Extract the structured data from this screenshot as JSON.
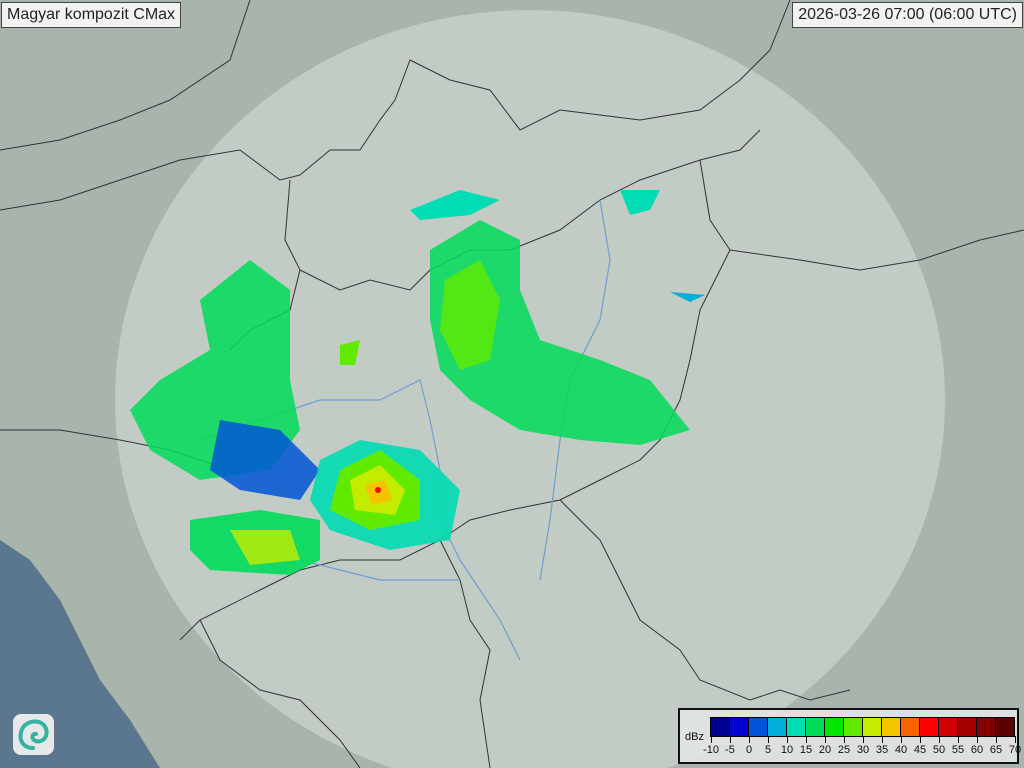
{
  "header": {
    "title": "Magyar kompozit  CMax",
    "timestamp": "2026-03-26 07:00 (06:00 UTC)"
  },
  "logo": {
    "icon": "swirl-logo-icon"
  },
  "legend": {
    "unit": "dBz",
    "ticks": [
      "-10",
      "-5",
      "0",
      "5",
      "10",
      "15",
      "20",
      "25",
      "30",
      "35",
      "40",
      "45",
      "50",
      "55",
      "60",
      "65",
      "70"
    ],
    "colors": [
      "#00008f",
      "#0000d2",
      "#0056d6",
      "#00aedb",
      "#00dcb4",
      "#00dc5a",
      "#00e600",
      "#60ea00",
      "#c4ec00",
      "#f5c400",
      "#f56400",
      "#ff0000",
      "#d20000",
      "#a80000",
      "#820000",
      "#5c0000"
    ]
  },
  "map": {
    "background_color": "#a9b5ac",
    "radar_coverage_color": "#dfe6e3",
    "sea_color": "#5b7790",
    "border_color": "#333333",
    "river_color": "#6fa0d0"
  }
}
